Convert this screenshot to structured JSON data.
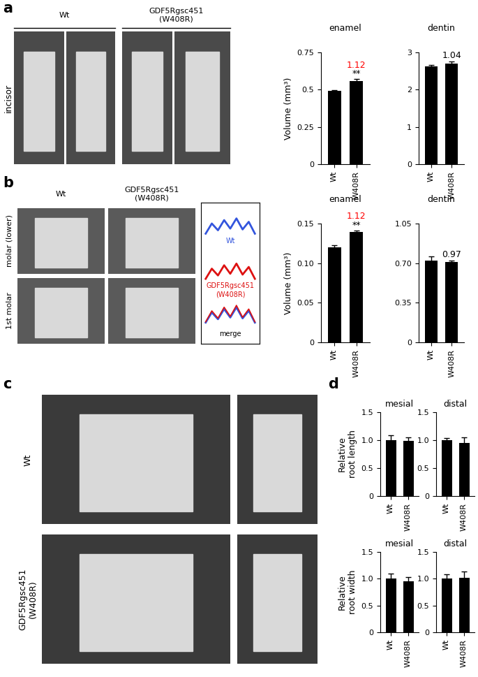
{
  "panel_labels": [
    "a",
    "b",
    "c",
    "d"
  ],
  "images": {
    "a": {
      "columns": [
        "Wt",
        "GDF5Rgsc451\n(W408R)"
      ],
      "rows": [
        "incisor"
      ]
    },
    "b": {
      "columns": [
        "Wt",
        "GDF5Rgsc451\n(W408R)"
      ],
      "rows": [
        "molar (lower)",
        "1st molar"
      ],
      "merge_key": [
        "Wt",
        "GDF5Rgsc451\n(W408R)",
        "merge"
      ]
    },
    "c": {
      "rows": [
        "Wt",
        "GDF5Rgsc451\n(W408R)"
      ]
    }
  },
  "chart_data": [
    {
      "type": "bar",
      "title": "enamel",
      "y_label": "Volume (mm³)",
      "categories": [
        "Wt",
        "W408R"
      ],
      "values": [
        0.49,
        0.56
      ],
      "errors": [
        0.005,
        0.01
      ],
      "color": "#000000",
      "ylim": [
        0,
        0.75
      ],
      "yticks": [
        0,
        0.25,
        0.5,
        0.75
      ],
      "annotations": [
        {
          "text": "**",
          "color": "#000000"
        },
        {
          "text": "1.12",
          "color": "#ff0000"
        }
      ]
    },
    {
      "type": "bar",
      "title": "dentin",
      "categories": [
        "Wt",
        "W408R"
      ],
      "values": [
        2.63,
        2.7
      ],
      "errors": [
        0.03,
        0.06
      ],
      "color": "#000000",
      "ylim": [
        0,
        3
      ],
      "yticks": [
        0,
        1,
        2,
        3
      ],
      "annotations": [
        {
          "text": "1.04",
          "color": "#000000"
        }
      ]
    },
    {
      "type": "bar",
      "title": "enamel",
      "y_label": "Volume (mm³)",
      "categories": [
        "Wt",
        "W408R"
      ],
      "values": [
        0.12,
        0.139
      ],
      "errors": [
        0.003,
        0.002
      ],
      "color": "#000000",
      "ylim": [
        0,
        0.15
      ],
      "yticks": [
        0,
        0.05,
        {
          "value": 0.1,
          "label": "0.10"
        },
        0.15
      ],
      "annotations": [
        {
          "text": "**",
          "color": "#000000"
        },
        {
          "text": "1.12",
          "color": "#ff0000"
        }
      ]
    },
    {
      "type": "bar",
      "title": "dentin",
      "categories": [
        "Wt",
        "W408R"
      ],
      "values": [
        0.72,
        0.71
      ],
      "errors": [
        0.04,
        0.015
      ],
      "color": "#000000",
      "ylim": [
        0,
        1.05
      ],
      "yticks": [
        0,
        0.35,
        {
          "value": 0.7,
          "label": "0.70"
        },
        1.05
      ],
      "annotations": [
        {
          "text": "0.97",
          "color": "#000000"
        }
      ]
    },
    {
      "type": "bar",
      "title": "mesial",
      "y_label": "Relative\nroot length",
      "categories": [
        "Wt",
        "W408R"
      ],
      "values": [
        1.0,
        0.99
      ],
      "errors": [
        0.09,
        0.06
      ],
      "color": "#000000",
      "ylim": [
        0,
        1.5
      ],
      "yticks": [
        0,
        0.5,
        {
          "value": 1.0,
          "label": "1.0"
        },
        1.5
      ]
    },
    {
      "type": "bar",
      "title": "distal",
      "categories": [
        "Wt",
        "W408R"
      ],
      "values": [
        1.0,
        0.95
      ],
      "errors": [
        0.04,
        0.1
      ],
      "color": "#000000",
      "ylim": [
        0,
        1.5
      ],
      "yticks": [
        0,
        0.5,
        {
          "value": 1.0,
          "label": "1.0"
        },
        1.5
      ]
    },
    {
      "type": "bar",
      "title": "mesial",
      "y_label": "Relative\nroot width",
      "categories": [
        "Wt",
        "W408R"
      ],
      "values": [
        1.0,
        0.95
      ],
      "errors": [
        0.1,
        0.08
      ],
      "color": "#000000",
      "ylim": [
        0,
        1.5
      ],
      "yticks": [
        0,
        0.5,
        {
          "value": 1.0,
          "label": "1.0"
        },
        1.5
      ]
    },
    {
      "type": "bar",
      "title": "distal",
      "categories": [
        "Wt",
        "W408R"
      ],
      "values": [
        1.0,
        1.02
      ],
      "errors": [
        0.08,
        0.12
      ],
      "color": "#000000",
      "ylim": [
        0,
        1.5
      ],
      "yticks": [
        0,
        0.5,
        {
          "value": 1.0,
          "label": "1.0"
        },
        1.5
      ]
    }
  ]
}
